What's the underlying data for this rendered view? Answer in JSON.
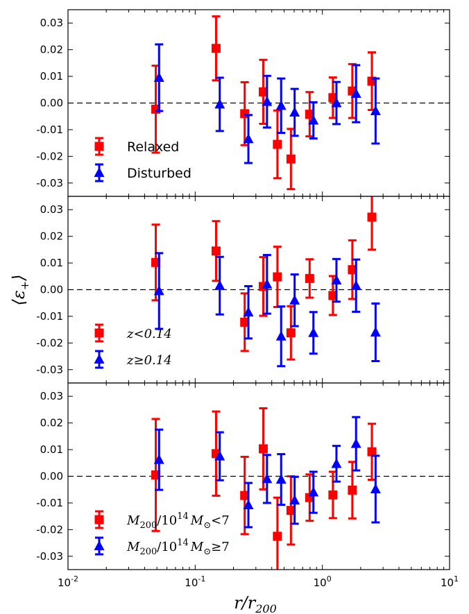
{
  "chart_data": {
    "type": "scatter",
    "xlabel": "r/r",
    "xlabel_sub": "200",
    "ylabel": "⟨ε",
    "ylabel_sub": "+",
    "ylabel_close": "⟩",
    "x_scale": "log",
    "xlim": [
      0.01,
      10
    ],
    "ylim": [
      -0.035,
      0.035
    ],
    "x_ticks": [
      {
        "value": 0.01,
        "base": "10",
        "exp": "-2"
      },
      {
        "value": 0.1,
        "base": "10",
        "exp": "-1"
      },
      {
        "value": 1,
        "base": "10",
        "exp": "0"
      },
      {
        "value": 10,
        "base": "10",
        "exp": "1"
      }
    ],
    "y_ticks": [
      -0.03,
      -0.02,
      -0.01,
      0.0,
      0.01,
      0.02,
      0.03
    ],
    "y_tick_labels": [
      "-0.03",
      "-0.02",
      "-0.01",
      "0.00",
      "0.01",
      "0.02",
      "0.03"
    ],
    "grid": false,
    "zero_line": "dashed",
    "legend_position": "lower-left",
    "panels": [
      {
        "series": [
          {
            "name": "Relaxed",
            "marker": "square",
            "color": "#ff0000",
            "x": [
              0.049,
              0.146,
              0.245,
              0.343,
              0.443,
              0.566,
              0.794,
              1.21,
              1.72,
              2.45
            ],
            "y": [
              -0.0023,
              0.0205,
              -0.004,
              0.0042,
              -0.0155,
              -0.021,
              -0.0042,
              0.002,
              0.0045,
              0.0082
            ],
            "err": [
              0.0163,
              0.012,
              0.0118,
              0.012,
              0.0127,
              0.0113,
              0.0083,
              0.0076,
              0.0101,
              0.0108
            ]
          },
          {
            "name": "Disturbed",
            "marker": "triangle",
            "color": "#0000ff",
            "x": [
              0.052,
              0.156,
              0.262,
              0.367,
              0.474,
              0.605,
              0.85,
              1.29,
              1.84,
              2.62
            ],
            "y": [
              0.0095,
              -0.0005,
              -0.0135,
              0.0005,
              -0.001,
              -0.0035,
              -0.0065,
              0.0,
              0.0035,
              -0.003
            ],
            "err": [
              0.0125,
              0.01,
              0.009,
              0.0097,
              0.0102,
              0.0088,
              0.0068,
              0.0079,
              0.0107,
              0.0122
            ]
          }
        ]
      },
      {
        "series": [
          {
            "name": "z<0.14",
            "marker": "square",
            "color": "#ff0000",
            "x": [
              0.049,
              0.146,
              0.245,
              0.343,
              0.443,
              0.566,
              0.794,
              1.21,
              1.72,
              2.45
            ],
            "y": [
              0.0102,
              0.0145,
              -0.0122,
              0.0012,
              0.0048,
              -0.0162,
              0.0042,
              -0.0022,
              0.0075,
              0.0272
            ],
            "err": [
              0.0142,
              0.0112,
              0.0108,
              0.011,
              0.0113,
              0.01,
              0.0072,
              0.0073,
              0.011,
              0.0122
            ]
          },
          {
            "name": "z≥0.14",
            "marker": "triangle",
            "color": "#0000ff",
            "x": [
              0.052,
              0.156,
              0.262,
              0.367,
              0.474,
              0.605,
              0.85,
              1.29,
              1.84,
              2.62
            ],
            "y": [
              -0.0005,
              0.0015,
              -0.0085,
              0.002,
              -0.0175,
              -0.004,
              -0.0162,
              0.0035,
              0.0015,
              -0.016
            ],
            "err": [
              0.0142,
              0.0108,
              0.0098,
              0.011,
              0.0112,
              0.0097,
              0.0078,
              0.008,
              0.0098,
              0.0108
            ]
          }
        ]
      },
      {
        "series": [
          {
            "name": "M200/10^14 M⊙<7",
            "label_parts": {
              "m": "M",
              "m_sub": "200",
              "div": "/10",
              "exp": "14",
              "m2": "M",
              "sun": "⊙",
              "rel": "<7"
            },
            "marker": "square",
            "color": "#ff0000",
            "x": [
              0.049,
              0.146,
              0.245,
              0.343,
              0.443,
              0.566,
              0.794,
              1.21,
              1.72,
              2.45
            ],
            "y": [
              0.0005,
              0.0085,
              -0.0072,
              0.0103,
              -0.0225,
              -0.0128,
              -0.008,
              -0.007,
              -0.0052,
              0.0092
            ],
            "err": [
              0.021,
              0.0158,
              0.0145,
              0.0152,
              0.0145,
              0.0128,
              0.0087,
              0.0087,
              0.0106,
              0.0105
            ]
          },
          {
            "name": "M200/10^14 M⊙≥7",
            "label_parts": {
              "m": "M",
              "m_sub": "200",
              "div": "/10",
              "exp": "14",
              "m2": "M",
              "sun": "⊙",
              "rel": "≥7"
            },
            "marker": "triangle",
            "color": "#0000ff",
            "x": [
              0.052,
              0.156,
              0.262,
              0.367,
              0.474,
              0.605,
              0.85,
              1.29,
              1.84,
              2.62
            ],
            "y": [
              0.0062,
              0.0075,
              -0.0108,
              -0.001,
              -0.0012,
              -0.009,
              -0.006,
              0.0047,
              0.0122,
              -0.0048
            ],
            "err": [
              0.0113,
              0.009,
              0.0083,
              0.009,
              0.0095,
              0.0088,
              0.0077,
              0.0067,
              0.01,
              0.0125
            ]
          }
        ]
      }
    ]
  }
}
